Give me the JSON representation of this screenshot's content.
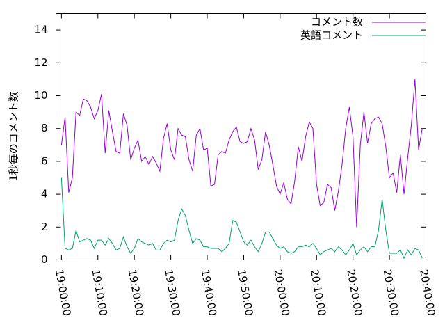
{
  "chart_data": {
    "type": "line",
    "y_label": "1秒毎のコメント数",
    "x": [
      "19:00:00",
      "19:01:00",
      "19:02:00",
      "19:03:00",
      "19:04:00",
      "19:05:00",
      "19:06:00",
      "19:07:00",
      "19:08:00",
      "19:09:00",
      "19:10:00",
      "19:11:00",
      "19:12:00",
      "19:13:00",
      "19:14:00",
      "19:15:00",
      "19:16:00",
      "19:17:00",
      "19:18:00",
      "19:19:00",
      "19:20:00",
      "19:21:00",
      "19:22:00",
      "19:23:00",
      "19:24:00",
      "19:25:00",
      "19:26:00",
      "19:27:00",
      "19:28:00",
      "19:29:00",
      "19:30:00",
      "19:31:00",
      "19:32:00",
      "19:33:00",
      "19:34:00",
      "19:35:00",
      "19:36:00",
      "19:37:00",
      "19:38:00",
      "19:39:00",
      "19:40:00",
      "19:41:00",
      "19:42:00",
      "19:43:00",
      "19:44:00",
      "19:45:00",
      "19:46:00",
      "19:47:00",
      "19:48:00",
      "19:49:00",
      "19:50:00",
      "19:51:00",
      "19:52:00",
      "19:53:00",
      "19:54:00",
      "19:55:00",
      "19:56:00",
      "19:57:00",
      "19:58:00",
      "19:59:00",
      "20:00:00",
      "20:01:00",
      "20:02:00",
      "20:03:00",
      "20:04:00",
      "20:05:00",
      "20:06:00",
      "20:07:00",
      "20:08:00",
      "20:09:00",
      "20:10:00",
      "20:11:00",
      "20:12:00",
      "20:13:00",
      "20:14:00",
      "20:15:00",
      "20:16:00",
      "20:17:00",
      "20:18:00",
      "20:19:00",
      "20:20:00",
      "20:21:00",
      "20:22:00",
      "20:23:00",
      "20:24:00",
      "20:25:00",
      "20:26:00",
      "20:27:00",
      "20:28:00",
      "20:29:00",
      "20:30:00",
      "20:31:00",
      "20:32:00",
      "20:33:00",
      "20:34:00",
      "20:35:00",
      "20:36:00",
      "20:37:00",
      "20:38:00",
      "20:39:00"
    ],
    "series": [
      {
        "name": "コメント数",
        "color": "#9400d3",
        "values": [
          7.0,
          8.7,
          4.1,
          5.0,
          9.0,
          8.8,
          9.8,
          9.7,
          9.3,
          8.6,
          9.1,
          10.1,
          6.5,
          9.1,
          7.8,
          6.6,
          6.5,
          8.9,
          8.2,
          6.1,
          6.8,
          7.3,
          6.0,
          6.3,
          5.8,
          6.3,
          5.9,
          5.4,
          7.4,
          8.3,
          6.7,
          6.1,
          8.0,
          7.6,
          7.5,
          6.1,
          5.4,
          7.6,
          8.0,
          6.7,
          6.8,
          4.5,
          4.6,
          6.4,
          6.6,
          6.5,
          7.3,
          7.8,
          8.1,
          7.2,
          7.1,
          7.2,
          8.0,
          7.3,
          5.5,
          6.1,
          7.8,
          7.0,
          5.8,
          4.5,
          4.0,
          4.7,
          3.7,
          3.4,
          4.8,
          6.9,
          6.0,
          7.5,
          8.4,
          8.0,
          4.6,
          3.3,
          3.5,
          4.6,
          4.4,
          3.0,
          4.2,
          5.8,
          8.0,
          9.3,
          7.5,
          2.0,
          7.0,
          9.0,
          7.1,
          8.3,
          8.6,
          8.7,
          8.3,
          6.9,
          5.0,
          5.3,
          4.1,
          6.4,
          4.0,
          6.2,
          8.2,
          11.0,
          6.7,
          8.0
        ]
      },
      {
        "name": "英語コメント",
        "color": "#009e73",
        "values": [
          5.0,
          0.7,
          0.6,
          0.7,
          1.8,
          1.1,
          1.2,
          1.3,
          1.2,
          0.7,
          1.2,
          1.2,
          0.9,
          1.3,
          1.0,
          0.6,
          0.7,
          1.4,
          0.8,
          0.4,
          0.7,
          1.3,
          1.1,
          1.0,
          0.9,
          1.0,
          0.6,
          0.6,
          1.0,
          1.2,
          1.1,
          1.2,
          2.4,
          3.1,
          2.7,
          1.8,
          1.0,
          1.3,
          1.2,
          0.8,
          0.8,
          0.7,
          0.7,
          0.7,
          0.5,
          0.7,
          1.0,
          2.4,
          2.3,
          1.7,
          1.1,
          0.9,
          1.2,
          0.8,
          0.5,
          1.0,
          1.7,
          1.7,
          1.3,
          0.9,
          0.7,
          0.8,
          0.5,
          0.4,
          0.5,
          0.8,
          0.8,
          0.9,
          0.8,
          1.0,
          0.7,
          0.3,
          0.5,
          0.6,
          0.7,
          0.5,
          0.8,
          0.6,
          0.3,
          0.6,
          1.0,
          0.3,
          0.6,
          0.8,
          0.5,
          0.8,
          0.8,
          1.8,
          3.7,
          1.8,
          0.4,
          0.4,
          0.4,
          0.6,
          0.1,
          0.6,
          0.3,
          0.7,
          0.6,
          0.1
        ]
      }
    ],
    "xlim": [
      "18:58:30",
      "20:40:00"
    ],
    "xticks": [
      "19:00:00",
      "19:10:00",
      "19:20:00",
      "19:30:00",
      "19:40:00",
      "19:50:00",
      "20:00:00",
      "20:10:00",
      "20:20:00",
      "20:30:00",
      "20:40:00"
    ],
    "ylim": [
      0,
      15
    ],
    "yticks": [
      0,
      2,
      4,
      6,
      8,
      10,
      12,
      14
    ],
    "legend": "top-right"
  }
}
